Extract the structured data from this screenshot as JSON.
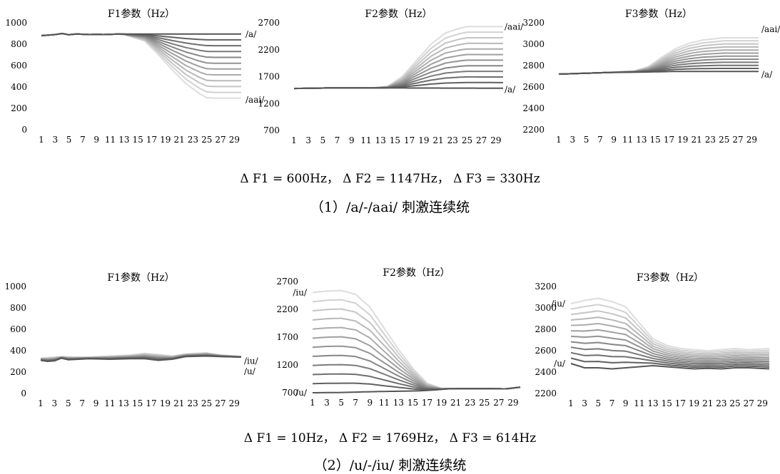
{
  "figure": {
    "row1": {
      "delta_text": "Δ F1 = 600Hz， Δ F2 = 1147Hz， Δ F3 = 330Hz",
      "caption": "（1）/a/-/aai/ 刺激连续统"
    },
    "row2": {
      "delta_text": "Δ F1 = 10Hz， Δ F2 = 1769Hz， Δ F3 = 614Hz",
      "caption": "（2）/u/-/iu/ 刺激连续统"
    }
  },
  "colors": {
    "dark_series": "#555555",
    "light_series": "#dddddd",
    "axis_text": "#000000"
  },
  "chart_data": [
    {
      "id": "a-F1",
      "type": "line",
      "title": "F1参数（Hz）",
      "ylim": [
        0,
        1000
      ],
      "yticks": [
        0,
        200,
        400,
        600,
        800,
        1000
      ],
      "xticks": [
        1,
        3,
        5,
        7,
        9,
        11,
        13,
        15,
        17,
        19,
        21,
        23,
        25,
        27,
        29
      ],
      "n_series": 12,
      "x_range": [
        1,
        30
      ],
      "start_profile": [
        [
          1,
          880
        ],
        [
          2,
          885
        ],
        [
          3,
          890
        ],
        [
          4,
          900
        ],
        [
          5,
          888
        ],
        [
          6,
          895
        ],
        [
          7,
          893
        ],
        [
          8,
          890
        ],
        [
          9,
          893
        ],
        [
          10,
          890
        ],
        [
          11,
          892
        ],
        [
          12,
          895
        ],
        [
          30,
          895
        ]
      ],
      "end_profile": [
        [
          1,
          880
        ],
        [
          2,
          885
        ],
        [
          3,
          890
        ],
        [
          4,
          900
        ],
        [
          5,
          888
        ],
        [
          6,
          895
        ],
        [
          7,
          893
        ],
        [
          8,
          890
        ],
        [
          9,
          893
        ],
        [
          10,
          890
        ],
        [
          11,
          892
        ],
        [
          12,
          895
        ],
        [
          13,
          890
        ],
        [
          16,
          830
        ],
        [
          18,
          700
        ],
        [
          20,
          560
        ],
        [
          22,
          430
        ],
        [
          24,
          335
        ],
        [
          25,
          300
        ],
        [
          26,
          295
        ],
        [
          30,
          295
        ]
      ],
      "labels": [
        {
          "text": "/a/",
          "series": "start"
        },
        {
          "text": "/aai/",
          "series": "end"
        }
      ]
    },
    {
      "id": "a-F2",
      "type": "line",
      "title": "F2参数（Hz）",
      "ylim": [
        700,
        2700
      ],
      "yticks": [
        700,
        1200,
        1700,
        2200,
        2700
      ],
      "xticks": [
        1,
        3,
        5,
        7,
        9,
        11,
        13,
        15,
        17,
        19,
        21,
        23,
        25,
        27,
        29
      ],
      "n_series": 12,
      "x_range": [
        1,
        30
      ],
      "start_profile": [
        [
          1,
          1480
        ],
        [
          6,
          1490
        ],
        [
          12,
          1490
        ],
        [
          30,
          1485
        ]
      ],
      "end_profile": [
        [
          1,
          1480
        ],
        [
          6,
          1490
        ],
        [
          12,
          1490
        ],
        [
          14,
          1520
        ],
        [
          16,
          1700
        ],
        [
          18,
          2000
        ],
        [
          20,
          2300
        ],
        [
          22,
          2510
        ],
        [
          24,
          2600
        ],
        [
          25,
          2630
        ],
        [
          30,
          2630
        ]
      ],
      "labels": [
        {
          "text": "/aai/",
          "series": "end"
        },
        {
          "text": "/a/",
          "series": "start"
        }
      ]
    },
    {
      "id": "a-F3",
      "type": "line",
      "title": "F3参数（Hz）",
      "ylim": [
        2200,
        3200
      ],
      "yticks": [
        2200,
        2400,
        2600,
        2800,
        3000,
        3200
      ],
      "xticks": [
        1,
        3,
        5,
        7,
        9,
        11,
        13,
        15,
        17,
        19,
        21,
        23,
        25,
        27,
        29
      ],
      "n_series": 12,
      "x_range": [
        1,
        30
      ],
      "start_profile": [
        [
          1,
          2720
        ],
        [
          8,
          2735
        ],
        [
          14,
          2740
        ],
        [
          18,
          2745
        ],
        [
          30,
          2745
        ]
      ],
      "end_profile": [
        [
          1,
          2720
        ],
        [
          8,
          2735
        ],
        [
          12,
          2750
        ],
        [
          14,
          2790
        ],
        [
          16,
          2880
        ],
        [
          18,
          2960
        ],
        [
          20,
          3010
        ],
        [
          22,
          3040
        ],
        [
          25,
          3060
        ],
        [
          30,
          3060
        ]
      ],
      "labels": [
        {
          "text": "/aai/",
          "series": "end"
        },
        {
          "text": "/a/",
          "series": "start"
        }
      ]
    },
    {
      "id": "u-F1",
      "type": "line",
      "title": "F1参数（Hz）",
      "ylim": [
        0,
        1000
      ],
      "yticks": [
        0,
        200,
        400,
        600,
        800,
        1000
      ],
      "xticks": [
        1,
        3,
        5,
        7,
        9,
        11,
        13,
        15,
        17,
        19,
        21,
        23,
        25,
        27,
        29
      ],
      "n_series": 12,
      "x_range": [
        1,
        30
      ],
      "start_profile": [
        [
          1,
          310
        ],
        [
          2,
          300
        ],
        [
          3,
          305
        ],
        [
          4,
          330
        ],
        [
          5,
          315
        ],
        [
          8,
          325
        ],
        [
          11,
          320
        ],
        [
          14,
          325
        ],
        [
          16,
          325
        ],
        [
          18,
          310
        ],
        [
          20,
          320
        ],
        [
          22,
          345
        ],
        [
          25,
          350
        ],
        [
          27,
          345
        ],
        [
          30,
          340
        ]
      ],
      "end_profile": [
        [
          1,
          330
        ],
        [
          2,
          335
        ],
        [
          4,
          345
        ],
        [
          6,
          340
        ],
        [
          8,
          340
        ],
        [
          11,
          350
        ],
        [
          14,
          360
        ],
        [
          16,
          375
        ],
        [
          18,
          365
        ],
        [
          20,
          350
        ],
        [
          22,
          370
        ],
        [
          25,
          380
        ],
        [
          27,
          360
        ],
        [
          30,
          345
        ]
      ],
      "labels": [
        {
          "text": "/iu/",
          "series": "end"
        },
        {
          "text": "/u/",
          "series": "start"
        }
      ]
    },
    {
      "id": "u-F2",
      "type": "line",
      "title": "F2参数（Hz）",
      "ylim": [
        700,
        2700
      ],
      "yticks": [
        700,
        1200,
        1700,
        2200,
        2700
      ],
      "xticks": [
        1,
        3,
        5,
        7,
        9,
        11,
        13,
        15,
        17,
        19,
        21,
        23,
        25,
        27,
        29
      ],
      "n_series": 12,
      "x_range": [
        1,
        30
      ],
      "start_profile": [
        [
          1,
          700
        ],
        [
          5,
          705
        ],
        [
          8,
          715
        ],
        [
          12,
          725
        ],
        [
          16,
          735
        ],
        [
          18,
          750
        ],
        [
          20,
          770
        ],
        [
          24,
          775
        ],
        [
          28,
          770
        ],
        [
          30,
          800
        ]
      ],
      "end_profile": [
        [
          1,
          2500
        ],
        [
          3,
          2530
        ],
        [
          5,
          2540
        ],
        [
          7,
          2470
        ],
        [
          9,
          2240
        ],
        [
          11,
          1860
        ],
        [
          13,
          1480
        ],
        [
          15,
          1140
        ],
        [
          17,
          870
        ],
        [
          19,
          780
        ],
        [
          21,
          775
        ],
        [
          24,
          775
        ],
        [
          28,
          770
        ],
        [
          30,
          800
        ]
      ],
      "labels": [
        {
          "text": "/iu/",
          "series": "end"
        },
        {
          "text": "/u/",
          "series": "start"
        }
      ]
    },
    {
      "id": "u-F3",
      "type": "line",
      "title": "F3参数（Hz）",
      "ylim": [
        2200,
        3200
      ],
      "yticks": [
        2200,
        2400,
        2600,
        2800,
        3000,
        3200
      ],
      "xticks": [
        1,
        3,
        5,
        7,
        9,
        11,
        13,
        15,
        17,
        19,
        21,
        23,
        25,
        27,
        29
      ],
      "n_series": 12,
      "x_range": [
        1,
        30
      ],
      "start_profile": [
        [
          1,
          2480
        ],
        [
          3,
          2440
        ],
        [
          5,
          2440
        ],
        [
          7,
          2430
        ],
        [
          9,
          2440
        ],
        [
          11,
          2450
        ],
        [
          13,
          2460
        ],
        [
          15,
          2450
        ],
        [
          17,
          2440
        ],
        [
          19,
          2430
        ],
        [
          21,
          2435
        ],
        [
          23,
          2430
        ],
        [
          25,
          2440
        ],
        [
          27,
          2440
        ],
        [
          30,
          2430
        ]
      ],
      "end_profile": [
        [
          1,
          3040
        ],
        [
          3,
          3070
        ],
        [
          5,
          3090
        ],
        [
          7,
          3060
        ],
        [
          9,
          3010
        ],
        [
          11,
          2860
        ],
        [
          13,
          2710
        ],
        [
          15,
          2650
        ],
        [
          17,
          2620
        ],
        [
          19,
          2610
        ],
        [
          21,
          2600
        ],
        [
          23,
          2610
        ],
        [
          25,
          2620
        ],
        [
          27,
          2610
        ],
        [
          30,
          2620
        ]
      ],
      "labels": [
        {
          "text": "/iu/",
          "series": "end"
        },
        {
          "text": "/u/",
          "series": "start"
        }
      ]
    }
  ]
}
